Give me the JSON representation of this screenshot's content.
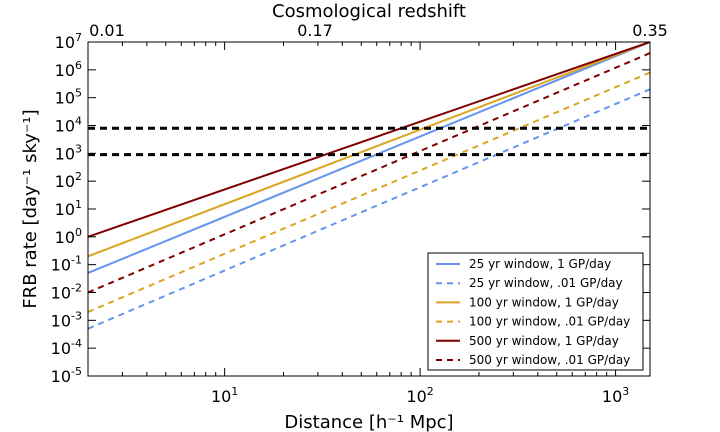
{
  "chart_data": {
    "type": "line",
    "xscale": "log",
    "yscale": "log",
    "xlim": [
      2,
      1500
    ],
    "ylim": [
      1e-05,
      10000000
    ],
    "xlabel": "Distance [h⁻¹ Mpc]",
    "ylabel": "FRB rate [day⁻¹ sky⁻¹]",
    "top_axis": {
      "label": "Cosmological redshift",
      "ticks": [
        {
          "distance": 2.5,
          "label": "0.01"
        },
        {
          "distance": 29,
          "label": "0.17"
        },
        {
          "distance": 1500,
          "label": "0.35"
        }
      ]
    },
    "x_ticks": [
      {
        "value": 10,
        "base": "10",
        "exp": "1"
      },
      {
        "value": 100,
        "base": "10",
        "exp": "2"
      },
      {
        "value": 1000,
        "base": "10",
        "exp": "3"
      }
    ],
    "y_ticks": [
      {
        "value": 1e-05,
        "base": "10",
        "exp": "-5"
      },
      {
        "value": 0.0001,
        "base": "10",
        "exp": "-4"
      },
      {
        "value": 0.001,
        "base": "10",
        "exp": "-3"
      },
      {
        "value": 0.01,
        "base": "10",
        "exp": "-2"
      },
      {
        "value": 0.1,
        "base": "10",
        "exp": "-1"
      },
      {
        "value": 1,
        "base": "10",
        "exp": "0"
      },
      {
        "value": 10,
        "base": "10",
        "exp": "1"
      },
      {
        "value": 100,
        "base": "10",
        "exp": "2"
      },
      {
        "value": 1000,
        "base": "10",
        "exp": "3"
      },
      {
        "value": 10000,
        "base": "10",
        "exp": "4"
      },
      {
        "value": 100000,
        "base": "10",
        "exp": "5"
      },
      {
        "value": 1000000,
        "base": "10",
        "exp": "6"
      },
      {
        "value": 10000000,
        "base": "10",
        "exp": "7"
      }
    ],
    "series": [
      {
        "name": "25 yr window, 1 GP/day",
        "color": "#6495ed",
        "dash": false,
        "x": [
          2,
          1500
        ],
        "y": [
          0.05,
          10000000
        ]
      },
      {
        "name": "25 yr window, .01 GP/day",
        "color": "#6495ed",
        "dash": true,
        "x": [
          2,
          1500
        ],
        "y": [
          0.0005,
          200000
        ]
      },
      {
        "name": "100 yr window, 1 GP/day",
        "color": "#daa520",
        "dash": false,
        "x": [
          2,
          1500
        ],
        "y": [
          0.2,
          10000000
        ]
      },
      {
        "name": "100 yr window, .01 GP/day",
        "color": "#daa520",
        "dash": true,
        "x": [
          2,
          1500
        ],
        "y": [
          0.002,
          800000
        ]
      },
      {
        "name": "500 yr window, 1 GP/day",
        "color": "#800000",
        "dash": false,
        "x": [
          2,
          1500
        ],
        "y": [
          1,
          10000000
        ]
      },
      {
        "name": "500 yr window, .01 GP/day",
        "color": "#800000",
        "dash": true,
        "x": [
          2,
          1500
        ],
        "y": [
          0.01,
          4000000
        ]
      }
    ],
    "hlines": [
      {
        "y": 8000,
        "color": "#000000",
        "dash": true
      },
      {
        "y": 900,
        "color": "#000000",
        "dash": true
      }
    ],
    "legend_position": "lower-right"
  }
}
